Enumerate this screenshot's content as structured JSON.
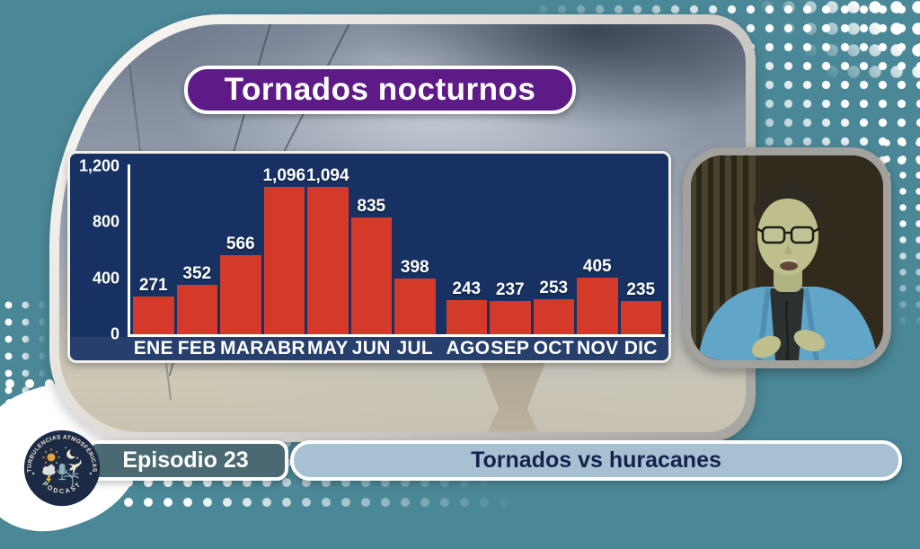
{
  "colors": {
    "background": "#4b8897",
    "banner_purple": "#5e1a86",
    "chart_navy": "#163162",
    "bar_red": "#d43a2a",
    "episode_teal": "#4a6972",
    "pill_blue": "#a7c1d2"
  },
  "title_banner": {
    "text": "Tornados nocturnos"
  },
  "chart_data": {
    "type": "bar",
    "title": "Tornados nocturnos",
    "categories": [
      "ENE",
      "FEB",
      "MAR",
      "ABR",
      "MAY",
      "JUN",
      "JUL",
      "AGO",
      "SEP",
      "OCT",
      "NOV",
      "DIC"
    ],
    "values": [
      271,
      352,
      566,
      1096,
      1094,
      835,
      398,
      243,
      237,
      253,
      405,
      235
    ],
    "value_labels": [
      "271",
      "352",
      "566",
      "1,096",
      "1,094",
      "835",
      "398",
      "243",
      "237",
      "253",
      "405",
      "235"
    ],
    "yticks": [
      {
        "label": "1,200",
        "value": 1200
      },
      {
        "label": "800",
        "value": 800
      },
      {
        "label": "400",
        "value": 400
      },
      {
        "label": "0",
        "value": 0
      }
    ],
    "ylim": [
      0,
      1200
    ],
    "xlabel": "",
    "ylabel": "",
    "grid": false,
    "legend": false,
    "bar_color": "#d43a2a",
    "plot_bg": "#163162"
  },
  "footer": {
    "episode_label": "Episodio 23",
    "episode_title": "Tornados vs huracanes"
  },
  "logo": {
    "arc_top": "TURBULENCIAS ATMOSFÉRICAS",
    "arc_bottom": "PODCAST"
  }
}
